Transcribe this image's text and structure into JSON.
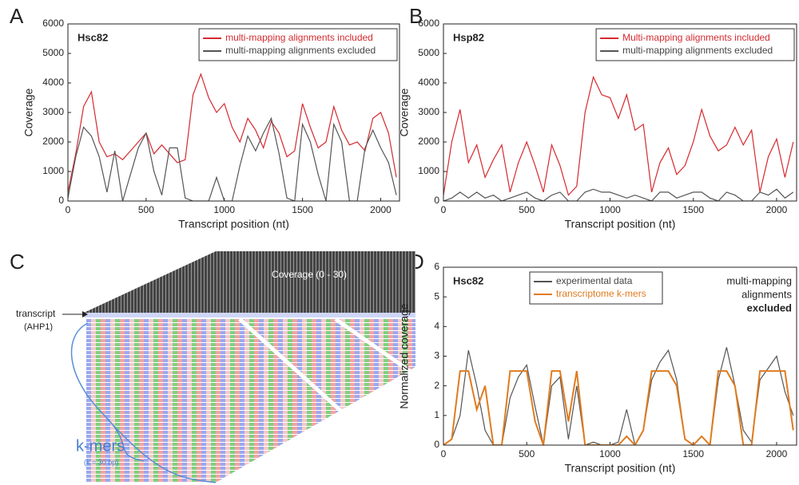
{
  "panel_labels": [
    "A",
    "B",
    "C",
    "D"
  ],
  "diagram": {
    "coverage_label": "Coverage (0 - 30)",
    "transcript_label": "transcript",
    "transcript_name": "(AHP1)",
    "kmers_label": "k-mers",
    "kmers_note": "(k = 30 bp)"
  },
  "chart_data": [
    {
      "type": "line",
      "title": "Hsc82",
      "xlabel": "Transcript position (nt)",
      "ylabel": "Coverage",
      "x": [
        0,
        50,
        100,
        150,
        200,
        250,
        300,
        350,
        400,
        450,
        500,
        550,
        600,
        650,
        700,
        750,
        800,
        850,
        900,
        950,
        1000,
        1050,
        1100,
        1150,
        1200,
        1250,
        1300,
        1350,
        1400,
        1450,
        1500,
        1550,
        1600,
        1650,
        1700,
        1750,
        1800,
        1850,
        1900,
        1950,
        2000,
        2050,
        2100
      ],
      "series": [
        {
          "name": "multi-mapping alignments included",
          "color": "#d42a2f",
          "values": [
            300,
            1600,
            3200,
            3700,
            2000,
            1500,
            1600,
            1400,
            1700,
            2000,
            2300,
            1600,
            1900,
            1600,
            1300,
            1400,
            3600,
            4300,
            3500,
            3000,
            3300,
            2500,
            2000,
            2800,
            2400,
            1800,
            2700,
            2300,
            1500,
            1700,
            3300,
            2500,
            1800,
            2000,
            3200,
            2400,
            1900,
            2000,
            1700,
            2800,
            3000,
            2300,
            800
          ]
        },
        {
          "name": "multi-mapping alignments excluded",
          "color": "#555555",
          "values": [
            100,
            1500,
            2500,
            2200,
            1500,
            300,
            1700,
            0,
            900,
            1800,
            2300,
            1000,
            200,
            1800,
            1800,
            100,
            0,
            0,
            0,
            800,
            0,
            0,
            1200,
            2200,
            1700,
            2300,
            2800,
            1600,
            100,
            0,
            2600,
            2000,
            900,
            0,
            2600,
            2000,
            0,
            0,
            1800,
            2400,
            1800,
            1300,
            200
          ]
        }
      ],
      "xlim": [
        0,
        2120
      ],
      "xticks": [
        0,
        500,
        1000,
        1500,
        2000
      ],
      "ylim": [
        0,
        6000
      ],
      "yticks": [
        0,
        1000,
        2000,
        3000,
        4000,
        5000,
        6000
      ],
      "legend": "upper right"
    },
    {
      "type": "line",
      "title": "Hsp82",
      "xlabel": "Transcript position (nt)",
      "ylabel": "Coverage",
      "x": [
        0,
        50,
        100,
        150,
        200,
        250,
        300,
        350,
        400,
        450,
        500,
        550,
        600,
        650,
        700,
        750,
        800,
        850,
        900,
        950,
        1000,
        1050,
        1100,
        1150,
        1200,
        1250,
        1300,
        1350,
        1400,
        1450,
        1500,
        1550,
        1600,
        1650,
        1700,
        1750,
        1800,
        1850,
        1900,
        1950,
        2000,
        2050,
        2100
      ],
      "series": [
        {
          "name": "Multi-mapping alignments included",
          "color": "#d42a2f",
          "values": [
            200,
            2000,
            3100,
            1300,
            1900,
            800,
            1400,
            1900,
            300,
            1300,
            2000,
            1200,
            300,
            1900,
            1200,
            200,
            500,
            3000,
            4200,
            3600,
            3500,
            2800,
            3600,
            2400,
            2600,
            300,
            1300,
            1800,
            900,
            1200,
            2000,
            3100,
            2200,
            1700,
            1900,
            2500,
            1900,
            2400,
            300,
            1500,
            2100,
            800,
            2000
          ]
        },
        {
          "name": "multi-mapping alignments excluded",
          "color": "#555555",
          "values": [
            0,
            100,
            300,
            100,
            300,
            100,
            200,
            0,
            100,
            200,
            300,
            100,
            0,
            200,
            300,
            0,
            0,
            300,
            400,
            300,
            300,
            200,
            100,
            200,
            100,
            0,
            300,
            300,
            100,
            200,
            300,
            300,
            100,
            0,
            300,
            200,
            0,
            0,
            300,
            200,
            400,
            100,
            300
          ]
        }
      ],
      "xlim": [
        0,
        2120
      ],
      "xticks": [
        0,
        500,
        1000,
        1500,
        2000
      ],
      "ylim": [
        0,
        6000
      ],
      "yticks": [
        0,
        1000,
        2000,
        3000,
        4000,
        5000,
        6000
      ],
      "legend": "upper right"
    },
    {
      "type": "line",
      "title": "Hsc82",
      "xlabel": "Transcript position (nt)",
      "ylabel": "Normalized coverage",
      "annotation": [
        "multi-mapping",
        "alignments",
        "excluded"
      ],
      "x": [
        0,
        50,
        100,
        150,
        200,
        250,
        300,
        350,
        400,
        450,
        500,
        550,
        600,
        650,
        700,
        750,
        800,
        850,
        900,
        950,
        1000,
        1050,
        1100,
        1150,
        1200,
        1250,
        1300,
        1350,
        1400,
        1450,
        1500,
        1550,
        1600,
        1650,
        1700,
        1750,
        1800,
        1850,
        1900,
        1950,
        2000,
        2050,
        2100
      ],
      "series": [
        {
          "name": "experimental data",
          "color": "#555555",
          "values": [
            0,
            0.2,
            1.0,
            3.2,
            2.0,
            0.5,
            0,
            0,
            1.6,
            2.3,
            2.7,
            1.3,
            0,
            2.0,
            2.3,
            0.2,
            2.0,
            0,
            0.1,
            0,
            0,
            0.1,
            1.2,
            0,
            0.5,
            2.2,
            2.8,
            3.2,
            2.2,
            0.2,
            0,
            0.3,
            0,
            2.2,
            3.3,
            2.0,
            0.5,
            0.1,
            2.2,
            2.6,
            3.0,
            1.8,
            1.0
          ]
        },
        {
          "name": "transcriptome k-mers",
          "color": "#e07b1f",
          "values": [
            0,
            0.2,
            2.5,
            2.5,
            1.2,
            2.0,
            0,
            0,
            2.5,
            2.5,
            2.5,
            0.8,
            0,
            2.5,
            2.5,
            0.8,
            2.5,
            0,
            0,
            0,
            0,
            0,
            0.3,
            0,
            0.5,
            2.5,
            2.5,
            2.5,
            2.0,
            0.2,
            0,
            0.3,
            0,
            2.5,
            2.5,
            2.0,
            0,
            0,
            2.5,
            2.5,
            2.5,
            2.5,
            0.5
          ]
        }
      ],
      "xlim": [
        0,
        2120
      ],
      "xticks": [
        0,
        500,
        1000,
        1500,
        2000
      ],
      "ylim": [
        0,
        6
      ],
      "yticks": [
        0,
        1,
        2,
        3,
        4,
        5,
        6
      ],
      "legend": "upper center"
    }
  ]
}
